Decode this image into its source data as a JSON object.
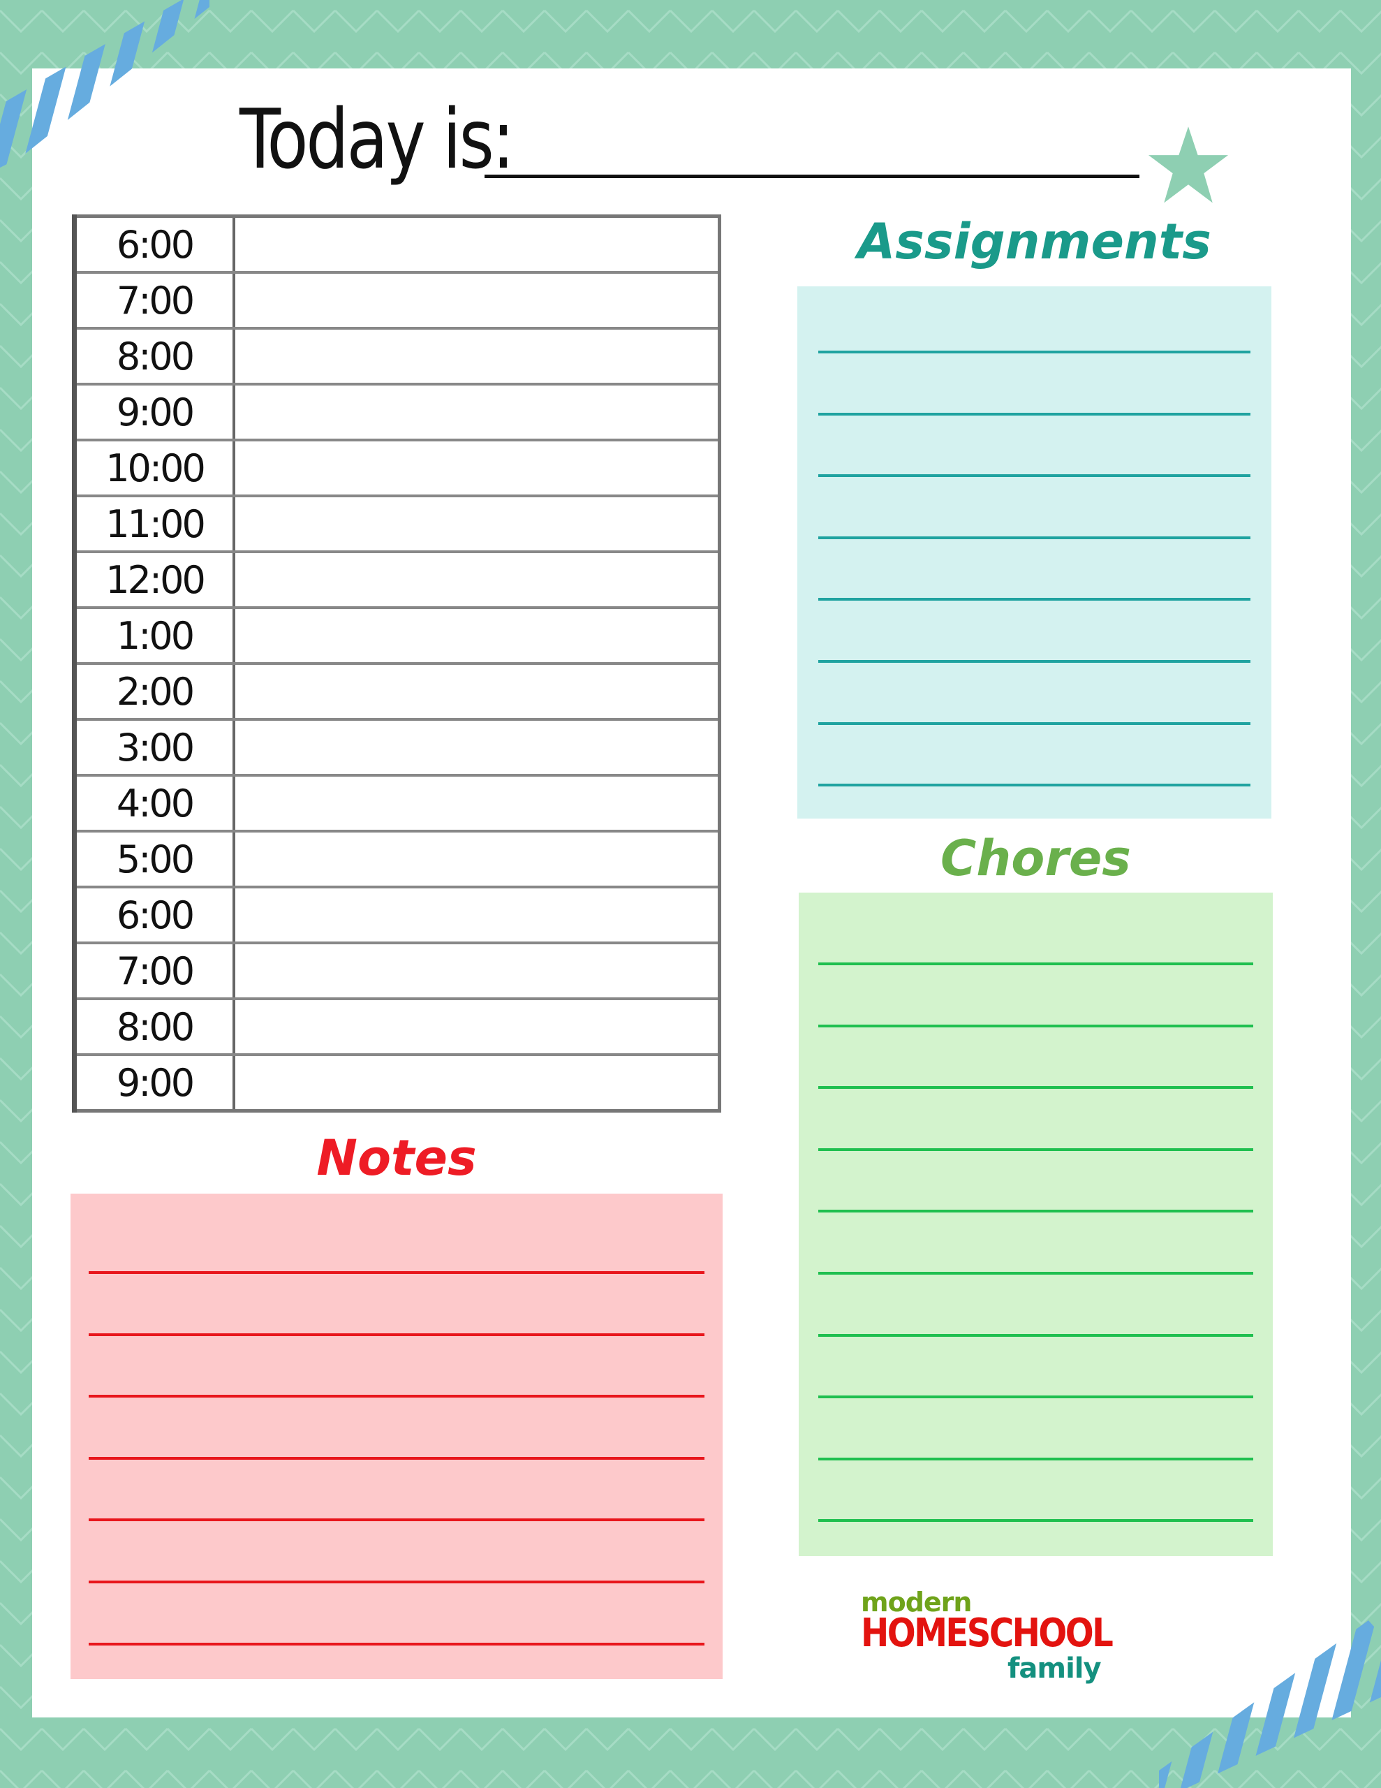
{
  "header": {
    "title": "Today is:",
    "date_value": ""
  },
  "schedule": {
    "times": [
      "6:00",
      "7:00",
      "8:00",
      "9:00",
      "10:00",
      "11:00",
      "12:00",
      "1:00",
      "2:00",
      "3:00",
      "4:00",
      "5:00",
      "6:00",
      "7:00",
      "8:00",
      "9:00"
    ],
    "entries": [
      "",
      "",
      "",
      "",
      "",
      "",
      "",
      "",
      "",
      "",
      "",
      "",
      "",
      "",
      "",
      ""
    ]
  },
  "assignments": {
    "title": "Assignments",
    "line_count": 8,
    "color": "#1a9a8a",
    "box_color": "#d4f2f0"
  },
  "chores": {
    "title": "Chores",
    "line_count": 10,
    "color": "#6ab04c",
    "box_color": "#d3f3cd"
  },
  "notes": {
    "title": "Notes",
    "line_count": 7,
    "color": "#ee1c25",
    "box_color": "#fdc9cb"
  },
  "logo": {
    "line1": "modern",
    "line2": "HOMESCHOOL",
    "line3": "family"
  },
  "colors": {
    "background": "#8ecfb2",
    "stripes": "#66acdf",
    "star": "#8ecfb2"
  },
  "icons": {
    "star": "star-icon"
  }
}
